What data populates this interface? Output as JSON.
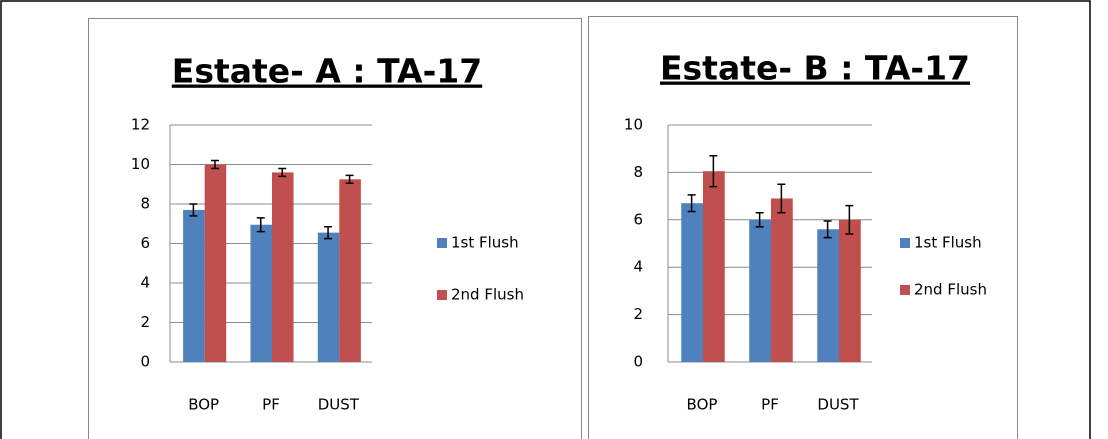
{
  "chart_data": [
    {
      "type": "bar",
      "title": "Estate- A : TA-17",
      "categories": [
        "BOP",
        "PF",
        "DUST"
      ],
      "series": [
        {
          "name": "1st Flush",
          "color": "#4f81bd",
          "values": [
            7.7,
            6.95,
            6.55
          ],
          "errors": [
            0.3,
            0.35,
            0.3
          ]
        },
        {
          "name": "2nd Flush",
          "color": "#c0504d",
          "values": [
            10.0,
            9.6,
            9.25
          ],
          "errors": [
            0.2,
            0.2,
            0.2
          ]
        }
      ],
      "ylim": [
        0,
        12
      ],
      "yticks": [
        0,
        2,
        4,
        6,
        8,
        10,
        12
      ],
      "grid": true,
      "legend": "right"
    },
    {
      "type": "bar",
      "title": "Estate- B : TA-17",
      "categories": [
        "BOP",
        "PF",
        "DUST"
      ],
      "series": [
        {
          "name": "1st Flush",
          "color": "#4f81bd",
          "values": [
            6.7,
            6.0,
            5.6
          ],
          "errors": [
            0.35,
            0.3,
            0.35
          ]
        },
        {
          "name": "2nd Flush",
          "color": "#c0504d",
          "values": [
            8.05,
            6.9,
            6.0
          ],
          "errors": [
            0.65,
            0.6,
            0.6
          ]
        }
      ],
      "ylim": [
        0,
        10
      ],
      "yticks": [
        0,
        2,
        4,
        6,
        8,
        10
      ],
      "grid": true,
      "legend": "right"
    }
  ]
}
